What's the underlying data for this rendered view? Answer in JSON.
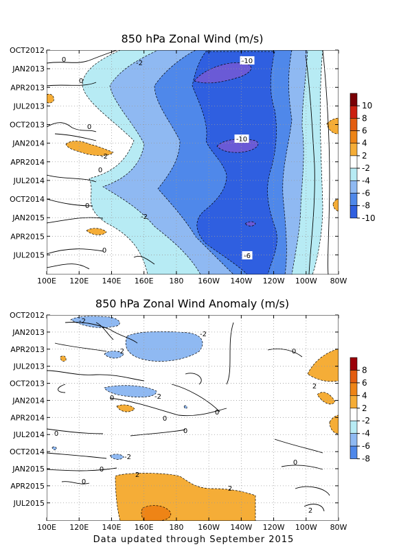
{
  "footer": "Data updated through September 2015",
  "colors": {
    "neg10": "#6a5ad6",
    "neg8": "#2f5fe0",
    "neg6": "#4f88ea",
    "neg4": "#8fb9f2",
    "neg2": "#b7ebf4",
    "pos2": "#f5ad37",
    "pos4": "#ee8416",
    "pos6": "#e35d10",
    "pos8": "#cc2010",
    "pos10": "#9b0008"
  },
  "chart_data": [
    {
      "type": "heatmap",
      "title": "850 hPa Zonal Wind (m/s)",
      "x_ticks": [
        "100E",
        "120E",
        "140E",
        "160E",
        "180",
        "160W",
        "140W",
        "120W",
        "100W",
        "80W"
      ],
      "y_ticks": [
        "OCT2012",
        "JAN2013",
        "APR2013",
        "JUL2013",
        "OCT2013",
        "JAN2014",
        "APR2014",
        "JUL2014",
        "OCT2014",
        "JAN2015",
        "APR2015",
        "JUL2015"
      ],
      "colorbar_labels": [
        "10",
        "8",
        "6",
        "4",
        "2",
        "-2",
        "-4",
        "-6",
        "-8",
        "-10"
      ],
      "contour_labels": [
        "0",
        "-2",
        "0",
        "0",
        "-2",
        "0",
        "0",
        "-2",
        "0",
        "-10",
        "-10",
        "-6"
      ],
      "grid": true,
      "x_range": [
        "100E",
        "80W"
      ],
      "y_range": [
        "OCT2012",
        "SEP2015"
      ],
      "legend": "right"
    },
    {
      "type": "heatmap",
      "title": "850 hPa Zonal Wind Anomaly (m/s)",
      "x_ticks": [
        "100E",
        "120E",
        "140E",
        "160E",
        "180",
        "160W",
        "140W",
        "120W",
        "100W",
        "80W"
      ],
      "y_ticks": [
        "OCT2012",
        "JAN2013",
        "APR2013",
        "JUL2013",
        "OCT2013",
        "JAN2014",
        "APR2014",
        "JUL2014",
        "OCT2014",
        "JAN2015",
        "APR2015",
        "JUL2015"
      ],
      "colorbar_labels": [
        "8",
        "6",
        "4",
        "2",
        "-2",
        "-4",
        "-6",
        "-8"
      ],
      "contour_labels": [
        "-2",
        "-2",
        "-2",
        "0",
        "-2",
        "0",
        "0",
        "0",
        "2",
        "0",
        "-2",
        "0",
        "2",
        "0",
        "0",
        "2",
        "2",
        "0"
      ],
      "grid": true,
      "x_range": [
        "100E",
        "80W"
      ],
      "y_range": [
        "OCT2012",
        "SEP2015"
      ],
      "legend": "right"
    }
  ]
}
